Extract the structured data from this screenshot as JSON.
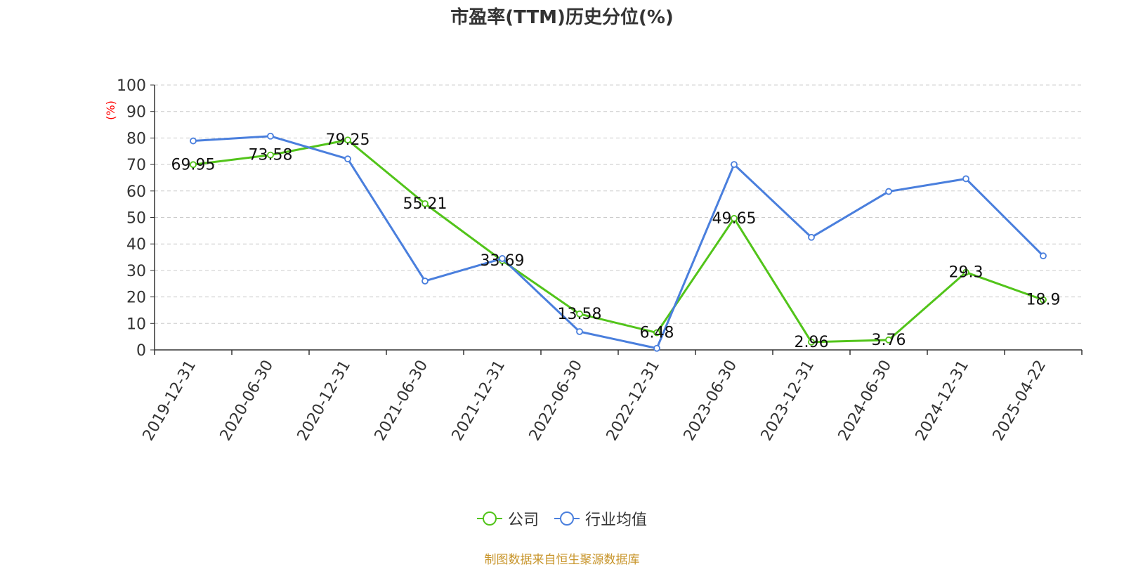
{
  "title": "市盈率(TTM)历史分位(%)",
  "source_text": "制图数据来自恒生聚源数据库",
  "colors": {
    "company": "#52c41a",
    "industry": "#4a7fdd",
    "axis_unit": "#ff0000",
    "grid": "#cccccc",
    "axis": "#333333"
  },
  "chart_data": {
    "type": "line",
    "title": "市盈率(TTM)历史分位(%)",
    "ylabel": "(%)",
    "xlabel": "",
    "ylim": [
      0,
      100
    ],
    "yticks": [
      0,
      10,
      20,
      30,
      40,
      50,
      60,
      70,
      80,
      90,
      100
    ],
    "grid": true,
    "legend_position": "bottom",
    "categories": [
      "2019-12-31",
      "2020-06-30",
      "2020-12-31",
      "2021-06-30",
      "2021-12-31",
      "2022-06-30",
      "2022-12-31",
      "2023-06-30",
      "2023-12-31",
      "2024-06-30",
      "2024-12-31",
      "2025-04-22"
    ],
    "series": [
      {
        "name": "公司",
        "values": [
          69.95,
          73.58,
          79.25,
          55.21,
          33.69,
          13.58,
          6.48,
          49.65,
          2.96,
          3.76,
          29.3,
          18.9
        ],
        "labels": [
          "69.95",
          "73.58",
          "79.25",
          "55.21",
          "33.69",
          "13.58",
          "6.48",
          "49.65",
          "2.96",
          "3.76",
          "29.3",
          "18.9"
        ]
      },
      {
        "name": "行业均值",
        "values": [
          78.9,
          80.7,
          72.1,
          26.0,
          34.5,
          6.9,
          0.6,
          70.0,
          42.5,
          59.8,
          64.6,
          35.5
        ]
      }
    ]
  }
}
